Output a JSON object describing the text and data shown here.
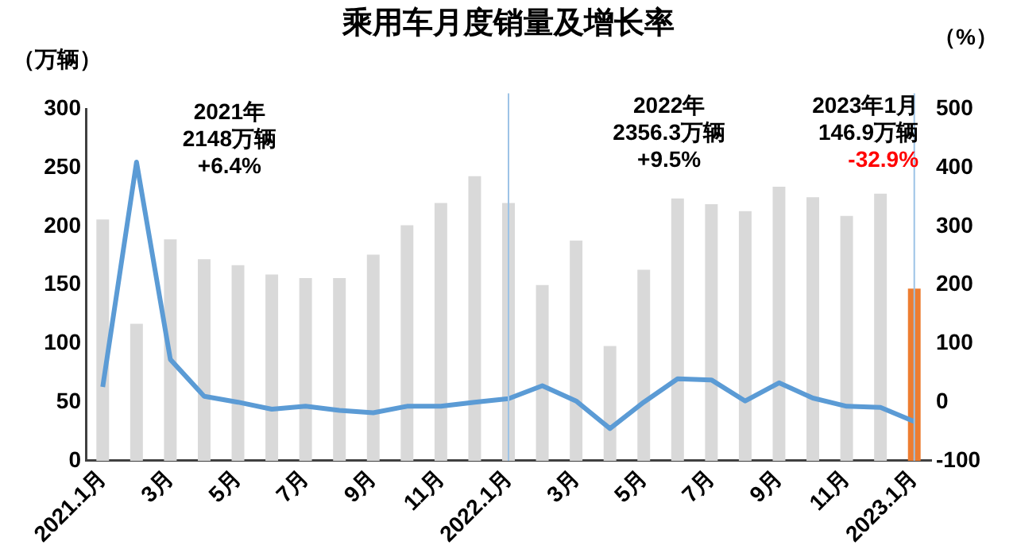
{
  "chart_data": {
    "type": "bar",
    "title": "乘用车月度销量及增长率",
    "ylabel": "（万辆）",
    "y2label": "（%）",
    "categories": [
      "2021.1月",
      null,
      "3月",
      null,
      "5月",
      null,
      "7月",
      null,
      "9月",
      null,
      "11月",
      null,
      "2022.1月",
      null,
      "3月",
      null,
      "5月",
      null,
      "7月",
      null,
      "9月",
      null,
      "11月",
      null,
      "2023.1月"
    ],
    "series": [
      {
        "colors": [
          "#d9d9d9",
          "#d9d9d9",
          "#d9d9d9",
          "#d9d9d9",
          "#d9d9d9",
          "#d9d9d9",
          "#d9d9d9",
          "#d9d9d9",
          "#d9d9d9",
          "#d9d9d9",
          "#d9d9d9",
          "#d9d9d9",
          "#d9d9d9",
          "#d9d9d9",
          "#d9d9d9",
          "#d9d9d9",
          "#d9d9d9",
          "#d9d9d9",
          "#d9d9d9",
          "#d9d9d9",
          "#d9d9d9",
          "#d9d9d9",
          "#d9d9d9",
          "#d9d9d9",
          "#ed7d31"
        ],
        "values": [
          206,
          117,
          189,
          172,
          167,
          159,
          156,
          156,
          176,
          201,
          220,
          243,
          220,
          150,
          188,
          98,
          163,
          224,
          219,
          213,
          234,
          225,
          209,
          228,
          146.9
        ]
      },
      {
        "type": "line",
        "axis": "y2",
        "color": "#5b9bd5",
        "values": [
          26,
          410,
          73,
          10,
          0,
          -12,
          -7,
          -14,
          -18,
          -7,
          -7,
          0,
          6,
          28,
          2,
          -45,
          0,
          40,
          38,
          2,
          33,
          7,
          -7,
          -9,
          -32.9
        ]
      }
    ],
    "ylim": [
      0,
      300
    ],
    "yticks": [
      0,
      50,
      100,
      150,
      200,
      250,
      300
    ],
    "y2lim": [
      -100,
      500
    ],
    "y2ticks": [
      -100,
      0,
      100,
      200,
      300,
      400,
      500
    ],
    "ref_lines": [
      {
        "axis": "x",
        "value": "2022.1月",
        "color": "#9dc3e6"
      },
      {
        "axis": "x",
        "value": "2023.1月",
        "color": "#9dc3e6"
      }
    ],
    "annotations": [
      "2021年\n2148万辆\n+6.4%",
      "2022年\n2356.3万辆\n+9.5%",
      "2023年1月\n146.9万辆\n-32.9%"
    ],
    "marker": "none",
    "line_style": "solid",
    "grid": false,
    "legend": false
  }
}
